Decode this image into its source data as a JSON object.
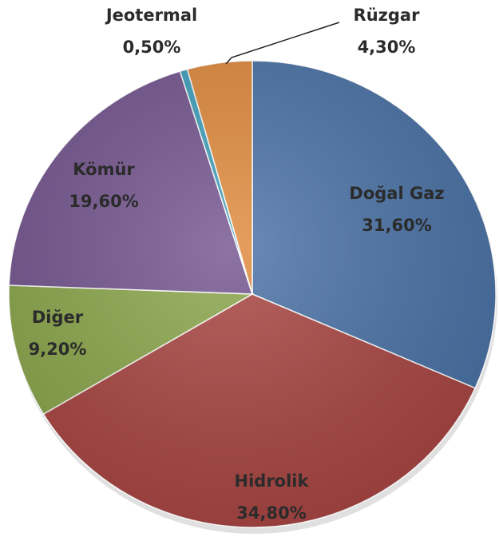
{
  "chart_data": {
    "type": "pie",
    "categories": [
      "Doğal Gaz",
      "Hidrolik",
      "Diğer",
      "Kömür",
      "Jeotermal",
      "Rüzgar"
    ],
    "values": [
      31.6,
      34.8,
      9.2,
      19.6,
      0.5,
      4.3
    ],
    "value_labels": [
      "31,60%",
      "34,80%",
      "9,20%",
      "19,60%",
      "0,50%",
      "4,30%"
    ],
    "colors": [
      "#4a72a6",
      "#a94542",
      "#8ba64b",
      "#74558f",
      "#3f9fbb",
      "#e08a3c"
    ]
  }
}
